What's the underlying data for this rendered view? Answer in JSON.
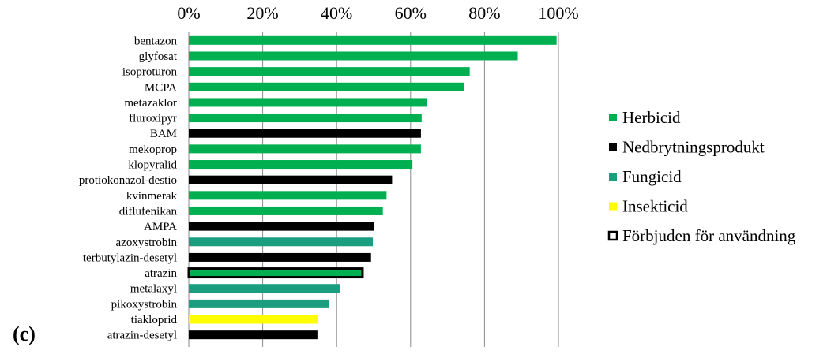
{
  "panel_label": "(c)",
  "colors": {
    "Herbicid": "#00b050",
    "Nedbrytningsprodukt": "#000000",
    "Fungicid": "#1a9e7f",
    "Insekticid": "#ffff00",
    "banned_outline": "#000000"
  },
  "chart_data": {
    "type": "bar",
    "orientation": "horizontal",
    "title": "",
    "xlabel": "",
    "ylabel": "",
    "xlim": [
      0,
      100
    ],
    "ticks": [
      0,
      20,
      40,
      60,
      80,
      100
    ],
    "tick_labels": [
      "0%",
      "20%",
      "40%",
      "60%",
      "80%",
      "100%"
    ],
    "grid": true,
    "legend_position": "right",
    "categories": [
      "bentazon",
      "glyfosat",
      "isoproturon",
      "MCPA",
      "metazaklor",
      "fluroxipyr",
      "BAM",
      "mekoprop",
      "klopyralid",
      "protiokonazol-destio",
      "kvinmerak",
      "diflufenikan",
      "AMPA",
      "azoxystrobin",
      "terbutylazin-desetyl",
      "atrazin",
      "metalaxyl",
      "pikoxystrobin",
      "tiakloprid",
      "atrazin-desetyl"
    ],
    "values": [
      99.5,
      89,
      76,
      74.5,
      64.5,
      63,
      62.8,
      62.8,
      60.5,
      55,
      53.5,
      52.5,
      50,
      49.8,
      49.3,
      47,
      41,
      38,
      35,
      34.8
    ],
    "groups": [
      "Herbicid",
      "Herbicid",
      "Herbicid",
      "Herbicid",
      "Herbicid",
      "Herbicid",
      "Nedbrytningsprodukt",
      "Herbicid",
      "Herbicid",
      "Nedbrytningsprodukt",
      "Herbicid",
      "Herbicid",
      "Nedbrytningsprodukt",
      "Fungicid",
      "Nedbrytningsprodukt",
      "Herbicid",
      "Fungicid",
      "Fungicid",
      "Insekticid",
      "Nedbrytningsprodukt"
    ],
    "banned": [
      false,
      false,
      false,
      false,
      false,
      false,
      false,
      false,
      false,
      false,
      false,
      false,
      false,
      false,
      false,
      true,
      false,
      false,
      false,
      false
    ],
    "legend": [
      {
        "key": "Herbicid",
        "label": "Herbicid"
      },
      {
        "key": "Nedbrytningsprodukt",
        "label": "Nedbrytningsprodukt"
      },
      {
        "key": "Fungicid",
        "label": "Fungicid"
      },
      {
        "key": "Insekticid",
        "label": "Insekticid"
      },
      {
        "key": "banned",
        "label": "Förbjuden för användning"
      }
    ]
  }
}
